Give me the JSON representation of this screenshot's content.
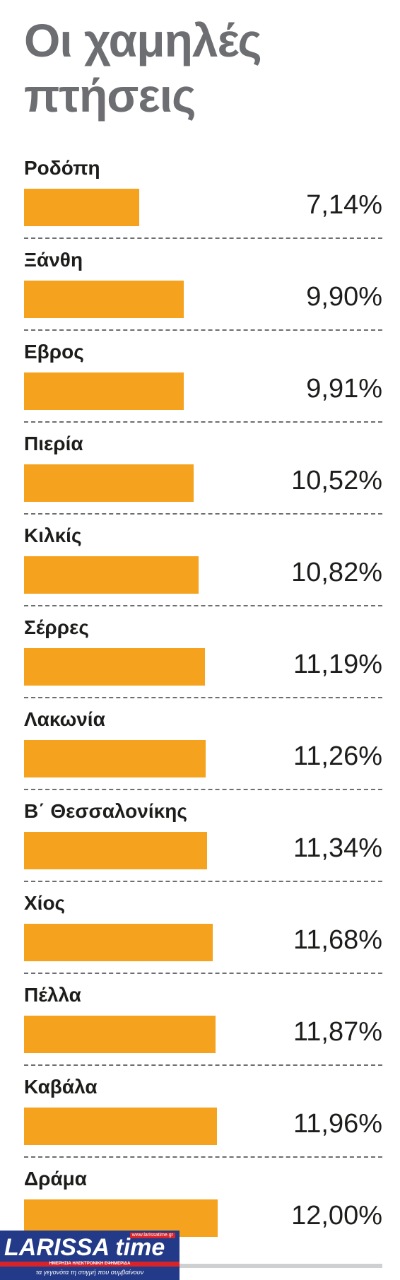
{
  "chart_data": {
    "type": "bar",
    "orientation": "horizontal",
    "title": "Οι χαμηλές πτήσεις",
    "categories": [
      "Ροδόπη",
      "Ξάνθη",
      "Εβρος",
      "Πιερία",
      "Κιλκίς",
      "Σέρρες",
      "Λακωνία",
      "Β΄ Θεσσαλονίκης",
      "Χίος",
      "Πέλλα",
      "Καβάλα",
      "Δράμα"
    ],
    "values": [
      7.14,
      9.9,
      9.91,
      10.52,
      10.82,
      11.19,
      11.26,
      11.34,
      11.68,
      11.87,
      11.96,
      12.0
    ],
    "value_labels": [
      "7,14%",
      "9,90%",
      "9,91%",
      "10,52%",
      "10,82%",
      "11,19%",
      "11,26%",
      "11,34%",
      "11,68%",
      "11,87%",
      "11,96%",
      "12,00%"
    ],
    "xlabel": "",
    "ylabel": "",
    "grid": false,
    "bar_color": "#f5a21e"
  },
  "logo": {
    "name": "LARISSA time",
    "site": "www.larissatime.gr",
    "band": "ΗΜΕΡΗΣΙΑ ΗΛΕΚΤΡΟΝΙΚΗ ΕΦΗΜΕΡΙΔΑ",
    "tagline": "τα γεγονότα τη στιγμή που συμβαίνουν"
  }
}
